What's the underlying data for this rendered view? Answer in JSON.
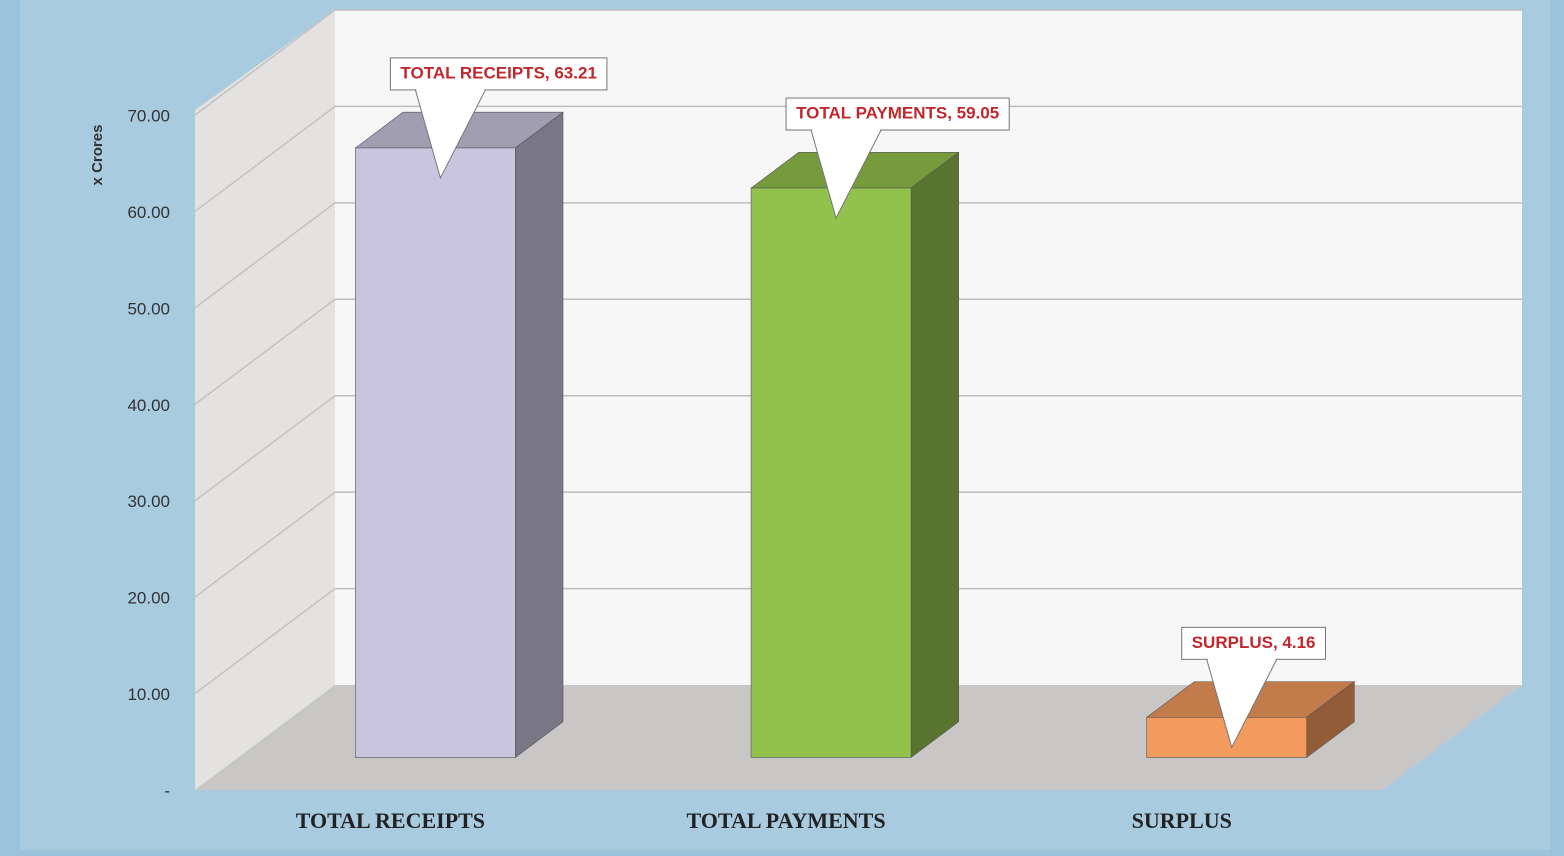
{
  "chart_data": {
    "type": "bar3d",
    "y_label": "x Crores",
    "categories": [
      "TOTAL RECEIPTS",
      "TOTAL PAYMENTS",
      "SURPLUS"
    ],
    "values": [
      63.21,
      59.05,
      4.16
    ],
    "value_labels": [
      "TOTAL RECEIPTS, 63.21",
      "TOTAL PAYMENTS, 59.05",
      "SURPLUS, 4.16"
    ],
    "colors": [
      "#c9c5de",
      "#92c24c",
      "#f39a5e"
    ],
    "ylim": [
      0,
      70
    ],
    "yticks": [
      {
        "value": 0,
        "label": "-"
      },
      {
        "value": 10,
        "label": "10.00"
      },
      {
        "value": 20,
        "label": "20.00"
      },
      {
        "value": 30,
        "label": "30.00"
      },
      {
        "value": 40,
        "label": "40.00"
      },
      {
        "value": 50,
        "label": "50.00"
      },
      {
        "value": 60,
        "label": "60.00"
      },
      {
        "value": 70,
        "label": "70.00"
      }
    ],
    "grid": true
  }
}
